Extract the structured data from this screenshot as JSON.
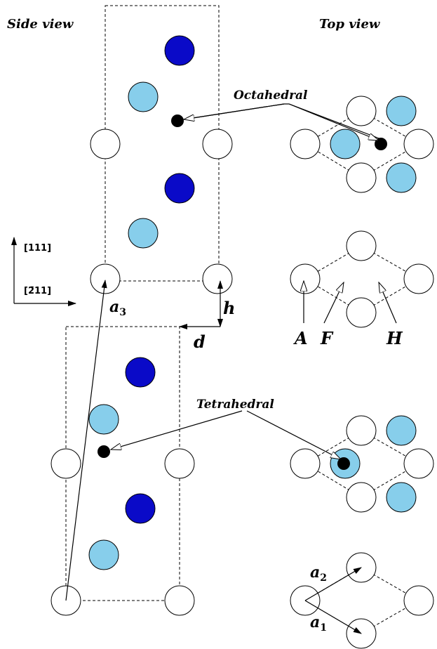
{
  "labels": {
    "side_view": "Side view",
    "top_view": "Top view",
    "octahedral": "Octahedral",
    "tetrahedral": "Tetrahedral",
    "dir_111": "[111]",
    "dir_211": "[2̄11]",
    "a3": {
      "symbol": "a",
      "sub": "3"
    },
    "h": "h",
    "d": "d",
    "site_a": "A",
    "site_f": "F",
    "site_h": "H",
    "a2": {
      "symbol": "a",
      "sub": "2"
    },
    "a1": {
      "symbol": "a",
      "sub": "1"
    }
  }
}
